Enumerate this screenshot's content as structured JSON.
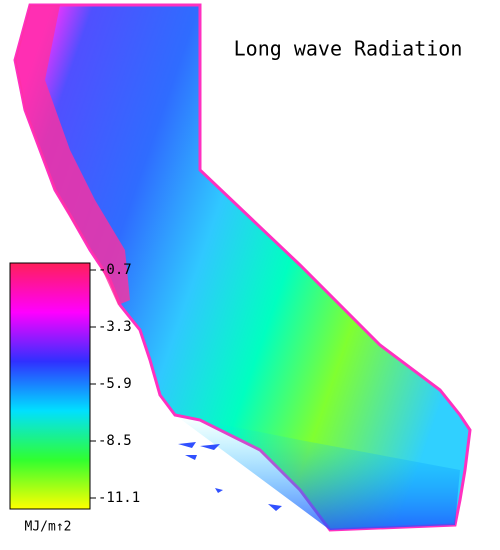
{
  "title": "Long wave Radiation",
  "colorbar": {
    "lim": [
      -11.1,
      -0.7
    ],
    "ticks": [
      -0.7,
      -3.3,
      -5.9,
      -8.5,
      -11.1
    ],
    "unit": "MJ/m↑2",
    "colors": [
      "#ff1f5a",
      "#ff00ff",
      "#3030ff",
      "#00e0ff",
      "#30ff30",
      "#ffff00"
    ]
  }
}
